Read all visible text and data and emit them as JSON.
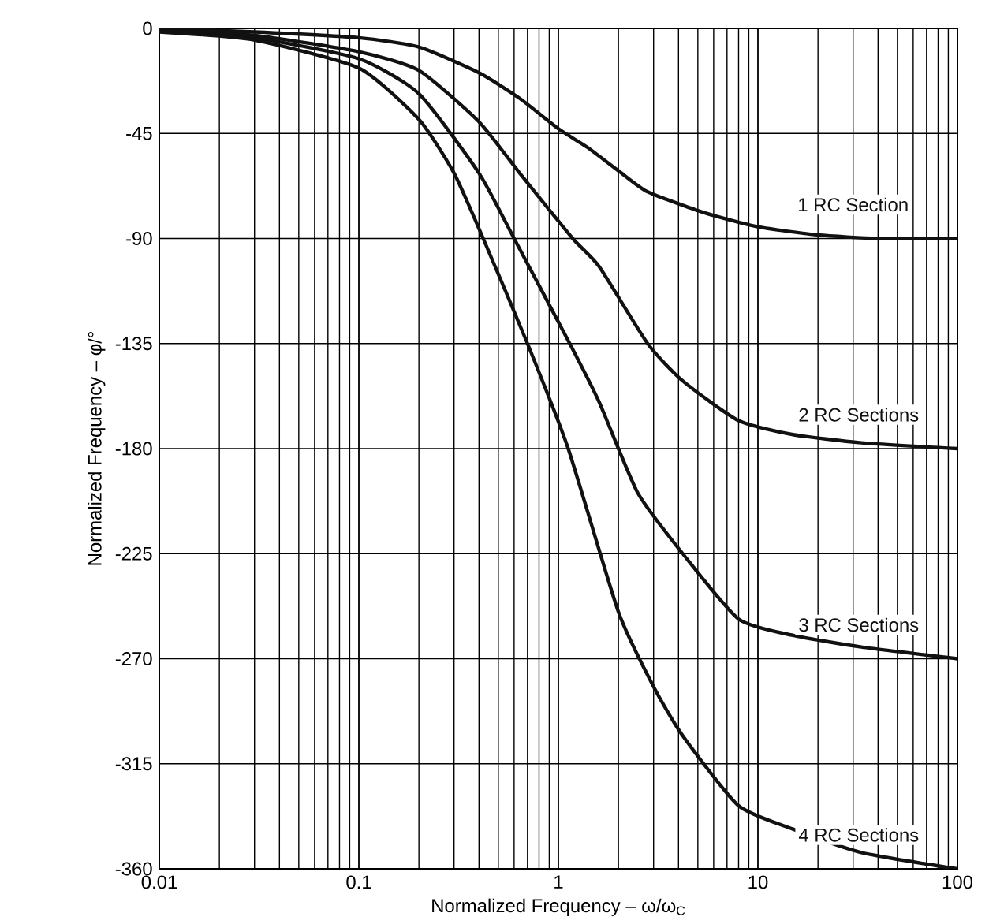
{
  "chart_data": {
    "type": "line",
    "xlabel": "Normalized Frequency – ω/ω$_{C}$",
    "ylabel": "Normalized Frequency – φ/°",
    "log": "x",
    "grid": true,
    "legend": false,
    "marker": "none",
    "line_style": "solid",
    "xlim": [
      0.01,
      100
    ],
    "xticks": [
      0.01,
      0.1,
      1,
      10,
      100
    ],
    "ylim": [
      -360,
      0
    ],
    "yticks": [
      0,
      -45,
      -90,
      -135,
      -180,
      -225,
      -270,
      -315,
      -360
    ],
    "series": [
      {
        "name": "1 RC Section",
        "color": "#111111",
        "x": [
          0.01,
          0.03,
          0.1,
          0.2,
          0.4,
          0.64,
          1,
          1.4,
          2,
          2.8,
          5.4,
          10,
          20,
          40,
          100
        ],
        "values": [
          0,
          -1.5,
          -4,
          -8,
          -19,
          -30,
          -43,
          -51,
          -61,
          -70,
          -79,
          -85,
          -88.5,
          -90,
          -90
        ]
      },
      {
        "name": "2 RC Sections",
        "color": "#111111",
        "x": [
          0.01,
          0.03,
          0.1,
          0.2,
          0.4,
          0.64,
          1.18,
          1.6,
          2.8,
          4.2,
          8,
          15,
          33,
          100
        ],
        "values": [
          -0.5,
          -3,
          -10,
          -18,
          -40,
          -62,
          -90,
          -102,
          -135,
          -151,
          -168,
          -174,
          -177.5,
          -180
        ]
      },
      {
        "name": "3 RC Sections",
        "color": "#111111",
        "x": [
          0.01,
          0.03,
          0.1,
          0.2,
          0.4,
          0.6,
          1.14,
          1.6,
          2.5,
          4.2,
          8,
          15,
          33,
          100
        ],
        "values": [
          -1,
          -4,
          -13,
          -28,
          -62,
          -90,
          -135,
          -160,
          -199,
          -225,
          -253,
          -260,
          -265,
          -270
        ]
      },
      {
        "name": "4 RC Sections",
        "color": "#111111",
        "x": [
          0.01,
          0.03,
          0.1,
          0.2,
          0.3,
          0.42,
          0.7,
          1.12,
          2,
          3,
          4.2,
          8,
          15,
          33,
          100
        ],
        "values": [
          -1.5,
          -5,
          -17,
          -39,
          -62,
          -90,
          -135,
          -180,
          -250,
          -282,
          -303,
          -333,
          -343,
          -353,
          -360
        ]
      }
    ]
  }
}
